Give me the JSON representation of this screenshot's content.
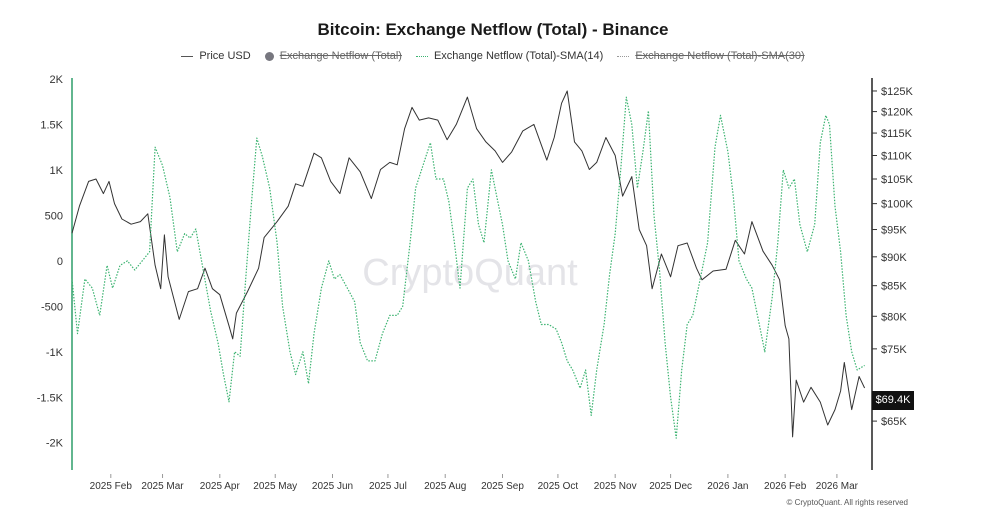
{
  "colors": {
    "price": "#333333",
    "netflow": "#77777f",
    "sma14": "#3cb371",
    "sma30": "#999999",
    "left_axis": "#2e9e6a",
    "right_axis": "#222222",
    "watermark": "#e4e4e8"
  },
  "watermark": "CryptoQuant",
  "copyright": "© CryptoQuant. All rights reserved",
  "chart_data": {
    "type": "line",
    "title": "Bitcoin: Exchange Netflow (Total) - Binance",
    "legend": [
      {
        "label": "Price USD",
        "marker": "line",
        "enabled": true
      },
      {
        "label": "Exchange Netflow (Total)",
        "marker": "dot",
        "enabled": false
      },
      {
        "label": "Exchange Netflow (Total)-SMA(14)",
        "marker": "dotted-line",
        "enabled": true
      },
      {
        "label": "Exchange Netflow (Total)-SMA(30)",
        "marker": "dotted-line",
        "enabled": false
      }
    ],
    "legend_position": "top-center",
    "grid": false,
    "x_axis": {
      "range": [
        "2025-01-11",
        "2026-03-20"
      ],
      "ticks": [
        {
          "date": "2025-02-01",
          "label": "2025 Feb"
        },
        {
          "date": "2025-03-01",
          "label": "2025 Mar"
        },
        {
          "date": "2025-04-01",
          "label": "2025 Apr"
        },
        {
          "date": "2025-05-01",
          "label": "2025 May"
        },
        {
          "date": "2025-06-01",
          "label": "2025 Jun"
        },
        {
          "date": "2025-07-01",
          "label": "2025 Jul"
        },
        {
          "date": "2025-08-01",
          "label": "2025 Aug"
        },
        {
          "date": "2025-09-01",
          "label": "2025 Sep"
        },
        {
          "date": "2025-10-01",
          "label": "2025 Oct"
        },
        {
          "date": "2025-11-01",
          "label": "2025 Nov"
        },
        {
          "date": "2025-12-01",
          "label": "2025 Dec"
        },
        {
          "date": "2026-01-01",
          "label": "2026 Jan"
        },
        {
          "date": "2026-02-01",
          "label": "2026 Feb"
        },
        {
          "date": "2026-03-01",
          "label": "2026 Mar"
        }
      ]
    },
    "y_left": {
      "range": [
        -2300,
        2000
      ],
      "ticks": [
        {
          "value": 2000,
          "label": "2K"
        },
        {
          "value": 1500,
          "label": "1.5K"
        },
        {
          "value": 1000,
          "label": "1K"
        },
        {
          "value": 500,
          "label": "500"
        },
        {
          "value": 0,
          "label": "0"
        },
        {
          "value": -500,
          "label": "-500"
        },
        {
          "value": -1000,
          "label": "-1K"
        },
        {
          "value": -1500,
          "label": "-1.5K"
        },
        {
          "value": -2000,
          "label": "-2K"
        }
      ]
    },
    "y_right": {
      "scale": "log",
      "range": [
        59000,
        128000
      ],
      "ticks": [
        {
          "value": 125000,
          "label": "$125K"
        },
        {
          "value": 120000,
          "label": "$120K"
        },
        {
          "value": 115000,
          "label": "$115K"
        },
        {
          "value": 110000,
          "label": "$110K"
        },
        {
          "value": 105000,
          "label": "$105K"
        },
        {
          "value": 100000,
          "label": "$100K"
        },
        {
          "value": 95000,
          "label": "$95K"
        },
        {
          "value": 90000,
          "label": "$90K"
        },
        {
          "value": 85000,
          "label": "$85K"
        },
        {
          "value": 80000,
          "label": "$80K"
        },
        {
          "value": 75000,
          "label": "$75K"
        },
        {
          "value": 65000,
          "label": "$65K"
        }
      ],
      "last_value_label": "$69.4K"
    },
    "series": [
      {
        "name": "Price USD",
        "axis": "right",
        "points": [
          [
            "2025-01-11",
            94300
          ],
          [
            "2025-01-15",
            99500
          ],
          [
            "2025-01-20",
            104500
          ],
          [
            "2025-01-24",
            105000
          ],
          [
            "2025-01-28",
            102000
          ],
          [
            "2025-01-31",
            104500
          ],
          [
            "2025-02-03",
            100000
          ],
          [
            "2025-02-07",
            97000
          ],
          [
            "2025-02-12",
            96000
          ],
          [
            "2025-02-17",
            96500
          ],
          [
            "2025-02-21",
            98000
          ],
          [
            "2025-02-25",
            88500
          ],
          [
            "2025-02-28",
            84500
          ],
          [
            "2025-03-02",
            94000
          ],
          [
            "2025-03-04",
            86500
          ],
          [
            "2025-03-10",
            79500
          ],
          [
            "2025-03-15",
            84000
          ],
          [
            "2025-03-20",
            84500
          ],
          [
            "2025-03-24",
            88000
          ],
          [
            "2025-03-28",
            84500
          ],
          [
            "2025-04-01",
            83500
          ],
          [
            "2025-04-06",
            78500
          ],
          [
            "2025-04-08",
            76500
          ],
          [
            "2025-04-10",
            80500
          ],
          [
            "2025-04-16",
            84000
          ],
          [
            "2025-04-22",
            88000
          ],
          [
            "2025-04-25",
            93500
          ],
          [
            "2025-05-02",
            96500
          ],
          [
            "2025-05-08",
            99500
          ],
          [
            "2025-05-12",
            104000
          ],
          [
            "2025-05-16",
            103500
          ],
          [
            "2025-05-22",
            110500
          ],
          [
            "2025-05-26",
            109500
          ],
          [
            "2025-05-31",
            104500
          ],
          [
            "2025-06-05",
            102000
          ],
          [
            "2025-06-10",
            109500
          ],
          [
            "2025-06-16",
            106500
          ],
          [
            "2025-06-22",
            101000
          ],
          [
            "2025-06-27",
            107000
          ],
          [
            "2025-07-02",
            108500
          ],
          [
            "2025-07-06",
            108000
          ],
          [
            "2025-07-10",
            116000
          ],
          [
            "2025-07-14",
            121000
          ],
          [
            "2025-07-18",
            118000
          ],
          [
            "2025-07-23",
            118500
          ],
          [
            "2025-07-28",
            118000
          ],
          [
            "2025-08-02",
            113500
          ],
          [
            "2025-08-07",
            117000
          ],
          [
            "2025-08-13",
            123500
          ],
          [
            "2025-08-18",
            116000
          ],
          [
            "2025-08-23",
            113000
          ],
          [
            "2025-08-28",
            111000
          ],
          [
            "2025-09-01",
            108500
          ],
          [
            "2025-09-06",
            110800
          ],
          [
            "2025-09-12",
            115500
          ],
          [
            "2025-09-18",
            117000
          ],
          [
            "2025-09-25",
            109000
          ],
          [
            "2025-09-29",
            114000
          ],
          [
            "2025-10-03",
            122000
          ],
          [
            "2025-10-06",
            125000
          ],
          [
            "2025-10-10",
            113000
          ],
          [
            "2025-10-14",
            111000
          ],
          [
            "2025-10-18",
            107000
          ],
          [
            "2025-10-22",
            108500
          ],
          [
            "2025-10-27",
            114000
          ],
          [
            "2025-11-01",
            110000
          ],
          [
            "2025-11-05",
            101500
          ],
          [
            "2025-11-10",
            105500
          ],
          [
            "2025-11-14",
            95000
          ],
          [
            "2025-11-18",
            92000
          ],
          [
            "2025-11-21",
            84500
          ],
          [
            "2025-11-26",
            90500
          ],
          [
            "2025-12-01",
            86500
          ],
          [
            "2025-12-05",
            92000
          ],
          [
            "2025-12-10",
            92500
          ],
          [
            "2025-12-15",
            88000
          ],
          [
            "2025-12-18",
            86000
          ],
          [
            "2025-12-24",
            87500
          ],
          [
            "2025-12-31",
            87800
          ],
          [
            "2026-01-05",
            93000
          ],
          [
            "2026-01-10",
            90500
          ],
          [
            "2026-01-14",
            96500
          ],
          [
            "2026-01-20",
            91000
          ],
          [
            "2026-01-25",
            88500
          ],
          [
            "2026-01-29",
            86000
          ],
          [
            "2026-02-01",
            78500
          ],
          [
            "2026-02-03",
            76500
          ],
          [
            "2026-02-05",
            63000
          ],
          [
            "2026-02-07",
            70500
          ],
          [
            "2026-02-11",
            67500
          ],
          [
            "2026-02-15",
            69500
          ],
          [
            "2026-02-20",
            67500
          ],
          [
            "2026-02-24",
            64500
          ],
          [
            "2026-02-28",
            66500
          ],
          [
            "2026-03-03",
            69000
          ],
          [
            "2026-03-05",
            73000
          ],
          [
            "2026-03-09",
            66500
          ],
          [
            "2026-03-13",
            71000
          ],
          [
            "2026-03-16",
            69400
          ]
        ]
      },
      {
        "name": "Exchange Netflow (Total)-SMA(14)",
        "axis": "left",
        "style": "dotted",
        "points": [
          [
            "2025-01-11",
            -200
          ],
          [
            "2025-01-14",
            -800
          ],
          [
            "2025-01-18",
            -200
          ],
          [
            "2025-01-22",
            -300
          ],
          [
            "2025-01-26",
            -600
          ],
          [
            "2025-01-30",
            -50
          ],
          [
            "2025-02-02",
            -300
          ],
          [
            "2025-02-06",
            -50
          ],
          [
            "2025-02-10",
            0
          ],
          [
            "2025-02-14",
            -100
          ],
          [
            "2025-02-18",
            0
          ],
          [
            "2025-02-22",
            100
          ],
          [
            "2025-02-25",
            1250
          ],
          [
            "2025-03-01",
            1050
          ],
          [
            "2025-03-05",
            700
          ],
          [
            "2025-03-09",
            100
          ],
          [
            "2025-03-13",
            300
          ],
          [
            "2025-03-16",
            250
          ],
          [
            "2025-03-19",
            350
          ],
          [
            "2025-03-23",
            -100
          ],
          [
            "2025-03-27",
            -550
          ],
          [
            "2025-03-31",
            -900
          ],
          [
            "2025-04-03",
            -1250
          ],
          [
            "2025-04-06",
            -1550
          ],
          [
            "2025-04-09",
            -1000
          ],
          [
            "2025-04-12",
            -1050
          ],
          [
            "2025-04-15",
            -200
          ],
          [
            "2025-04-18",
            600
          ],
          [
            "2025-04-21",
            1350
          ],
          [
            "2025-04-24",
            1150
          ],
          [
            "2025-04-28",
            800
          ],
          [
            "2025-05-02",
            200
          ],
          [
            "2025-05-05",
            -500
          ],
          [
            "2025-05-09",
            -1000
          ],
          [
            "2025-05-12",
            -1250
          ],
          [
            "2025-05-16",
            -1000
          ],
          [
            "2025-05-19",
            -1350
          ],
          [
            "2025-05-22",
            -800
          ],
          [
            "2025-05-26",
            -300
          ],
          [
            "2025-05-30",
            0
          ],
          [
            "2025-06-02",
            -200
          ],
          [
            "2025-06-05",
            -150
          ],
          [
            "2025-06-09",
            -300
          ],
          [
            "2025-06-13",
            -450
          ],
          [
            "2025-06-16",
            -900
          ],
          [
            "2025-06-20",
            -1100
          ],
          [
            "2025-06-24",
            -1100
          ],
          [
            "2025-06-28",
            -800
          ],
          [
            "2025-07-02",
            -600
          ],
          [
            "2025-07-06",
            -600
          ],
          [
            "2025-07-09",
            -500
          ],
          [
            "2025-07-13",
            200
          ],
          [
            "2025-07-16",
            800
          ],
          [
            "2025-07-20",
            1050
          ],
          [
            "2025-07-24",
            1300
          ],
          [
            "2025-07-27",
            900
          ],
          [
            "2025-07-31",
            900
          ],
          [
            "2025-08-03",
            650
          ],
          [
            "2025-08-06",
            200
          ],
          [
            "2025-08-09",
            -300
          ],
          [
            "2025-08-13",
            800
          ],
          [
            "2025-08-16",
            900
          ],
          [
            "2025-08-19",
            400
          ],
          [
            "2025-08-22",
            200
          ],
          [
            "2025-08-26",
            1000
          ],
          [
            "2025-08-29",
            700
          ],
          [
            "2025-09-01",
            400
          ],
          [
            "2025-09-04",
            0
          ],
          [
            "2025-09-08",
            -200
          ],
          [
            "2025-09-11",
            200
          ],
          [
            "2025-09-15",
            0
          ],
          [
            "2025-09-19",
            -450
          ],
          [
            "2025-09-22",
            -700
          ],
          [
            "2025-09-26",
            -700
          ],
          [
            "2025-09-30",
            -750
          ],
          [
            "2025-10-03",
            -900
          ],
          [
            "2025-10-06",
            -1100
          ],
          [
            "2025-10-09",
            -1200
          ],
          [
            "2025-10-13",
            -1400
          ],
          [
            "2025-10-16",
            -1200
          ],
          [
            "2025-10-19",
            -1700
          ],
          [
            "2025-10-22",
            -1200
          ],
          [
            "2025-10-26",
            -700
          ],
          [
            "2025-10-29",
            -150
          ],
          [
            "2025-11-01",
            300
          ],
          [
            "2025-11-04",
            1000
          ],
          [
            "2025-11-07",
            1800
          ],
          [
            "2025-11-10",
            1500
          ],
          [
            "2025-11-13",
            800
          ],
          [
            "2025-11-16",
            1200
          ],
          [
            "2025-11-19",
            1650
          ],
          [
            "2025-11-22",
            500
          ],
          [
            "2025-11-25",
            -100
          ],
          [
            "2025-11-28",
            -900
          ],
          [
            "2025-12-01",
            -1500
          ],
          [
            "2025-12-04",
            -1950
          ],
          [
            "2025-12-07",
            -1200
          ],
          [
            "2025-12-10",
            -700
          ],
          [
            "2025-12-13",
            -600
          ],
          [
            "2025-12-17",
            -200
          ],
          [
            "2025-12-21",
            200
          ],
          [
            "2025-12-25",
            1250
          ],
          [
            "2025-12-28",
            1600
          ],
          [
            "2026-01-01",
            1200
          ],
          [
            "2026-01-04",
            700
          ],
          [
            "2026-01-07",
            0
          ],
          [
            "2026-01-11",
            -200
          ],
          [
            "2026-01-14",
            -300
          ],
          [
            "2026-01-18",
            -700
          ],
          [
            "2026-01-21",
            -1000
          ],
          [
            "2026-01-25",
            -400
          ],
          [
            "2026-01-28",
            200
          ],
          [
            "2026-01-31",
            1000
          ],
          [
            "2026-02-03",
            800
          ],
          [
            "2026-02-06",
            900
          ],
          [
            "2026-02-09",
            400
          ],
          [
            "2026-02-13",
            100
          ],
          [
            "2026-02-17",
            400
          ],
          [
            "2026-02-20",
            1300
          ],
          [
            "2026-02-23",
            1600
          ],
          [
            "2026-02-25",
            1500
          ],
          [
            "2026-02-28",
            600
          ],
          [
            "2026-03-03",
            100
          ],
          [
            "2026-03-06",
            -600
          ],
          [
            "2026-03-09",
            -1000
          ],
          [
            "2026-03-12",
            -1200
          ],
          [
            "2026-03-16",
            -1150
          ]
        ]
      }
    ]
  }
}
